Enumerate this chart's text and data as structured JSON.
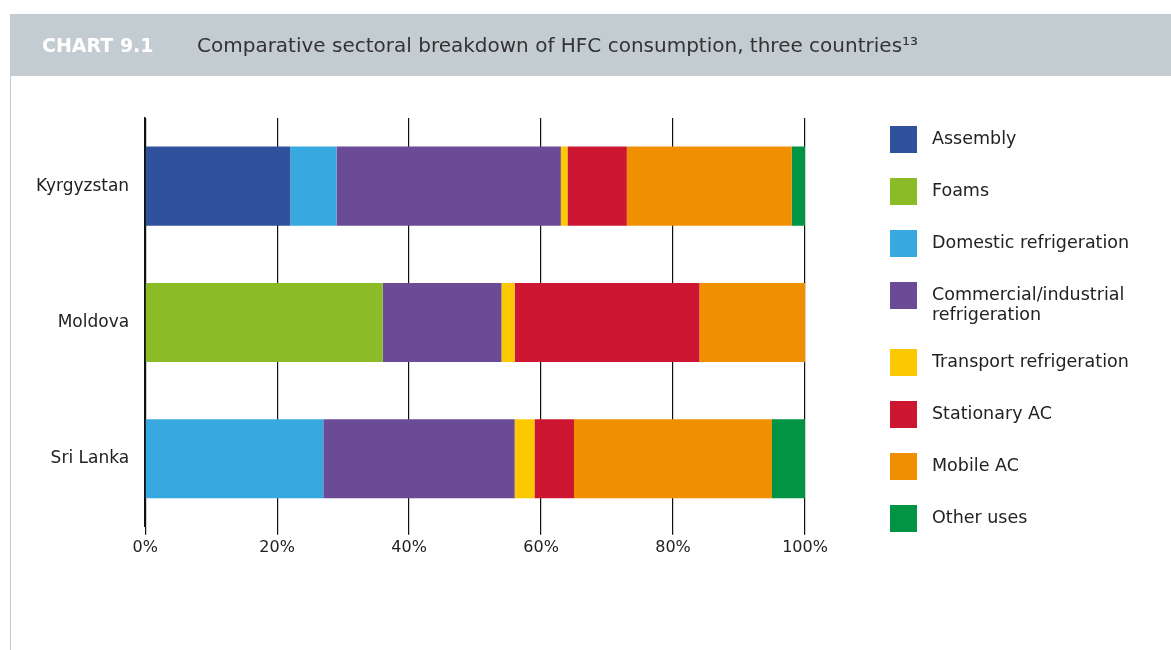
{
  "chart_data": {
    "type": "bar",
    "orientation": "horizontal",
    "stacked": true,
    "title": "Comparative sectoral breakdown of HFC consumption, three countries¹³",
    "annotations": [
      "CHART 9.1"
    ],
    "categories": [
      "Kyrgyzstan",
      "Moldova",
      "Sri Lanka"
    ],
    "series": [
      {
        "name": "Assembly",
        "color": "#30519b",
        "values": [
          22,
          null,
          null
        ]
      },
      {
        "name": "Foams",
        "color": "#8bbb27",
        "values": [
          null,
          36,
          null
        ]
      },
      {
        "name": "Domestic refrigeration",
        "color": "#38a9e0",
        "values": [
          7,
          null,
          27
        ]
      },
      {
        "name": "Commercial/industrial refrigeration",
        "color": "#6c4b96",
        "values": [
          34,
          18,
          29
        ]
      },
      {
        "name": "Transport refrigeration",
        "color": "#fcc800",
        "values": [
          1,
          2,
          3
        ]
      },
      {
        "name": "Stationary AC",
        "color": "#cc1632",
        "values": [
          9,
          28,
          6
        ]
      },
      {
        "name": "Mobile AC",
        "color": "#f09000",
        "values": [
          25,
          16,
          30
        ]
      },
      {
        "name": "Other uses",
        "color": "#009444",
        "values": [
          2,
          null,
          5
        ]
      }
    ],
    "xlim": [
      0,
      100
    ],
    "xticks": [
      {
        "value": 0,
        "label": "0%"
      },
      {
        "value": 20,
        "label": "20%"
      },
      {
        "value": 40,
        "label": "40%"
      },
      {
        "value": 60,
        "label": "60%"
      },
      {
        "value": 80,
        "label": "80%"
      },
      {
        "value": 100,
        "label": "100%"
      }
    ],
    "grid": "x",
    "legend": "right"
  }
}
